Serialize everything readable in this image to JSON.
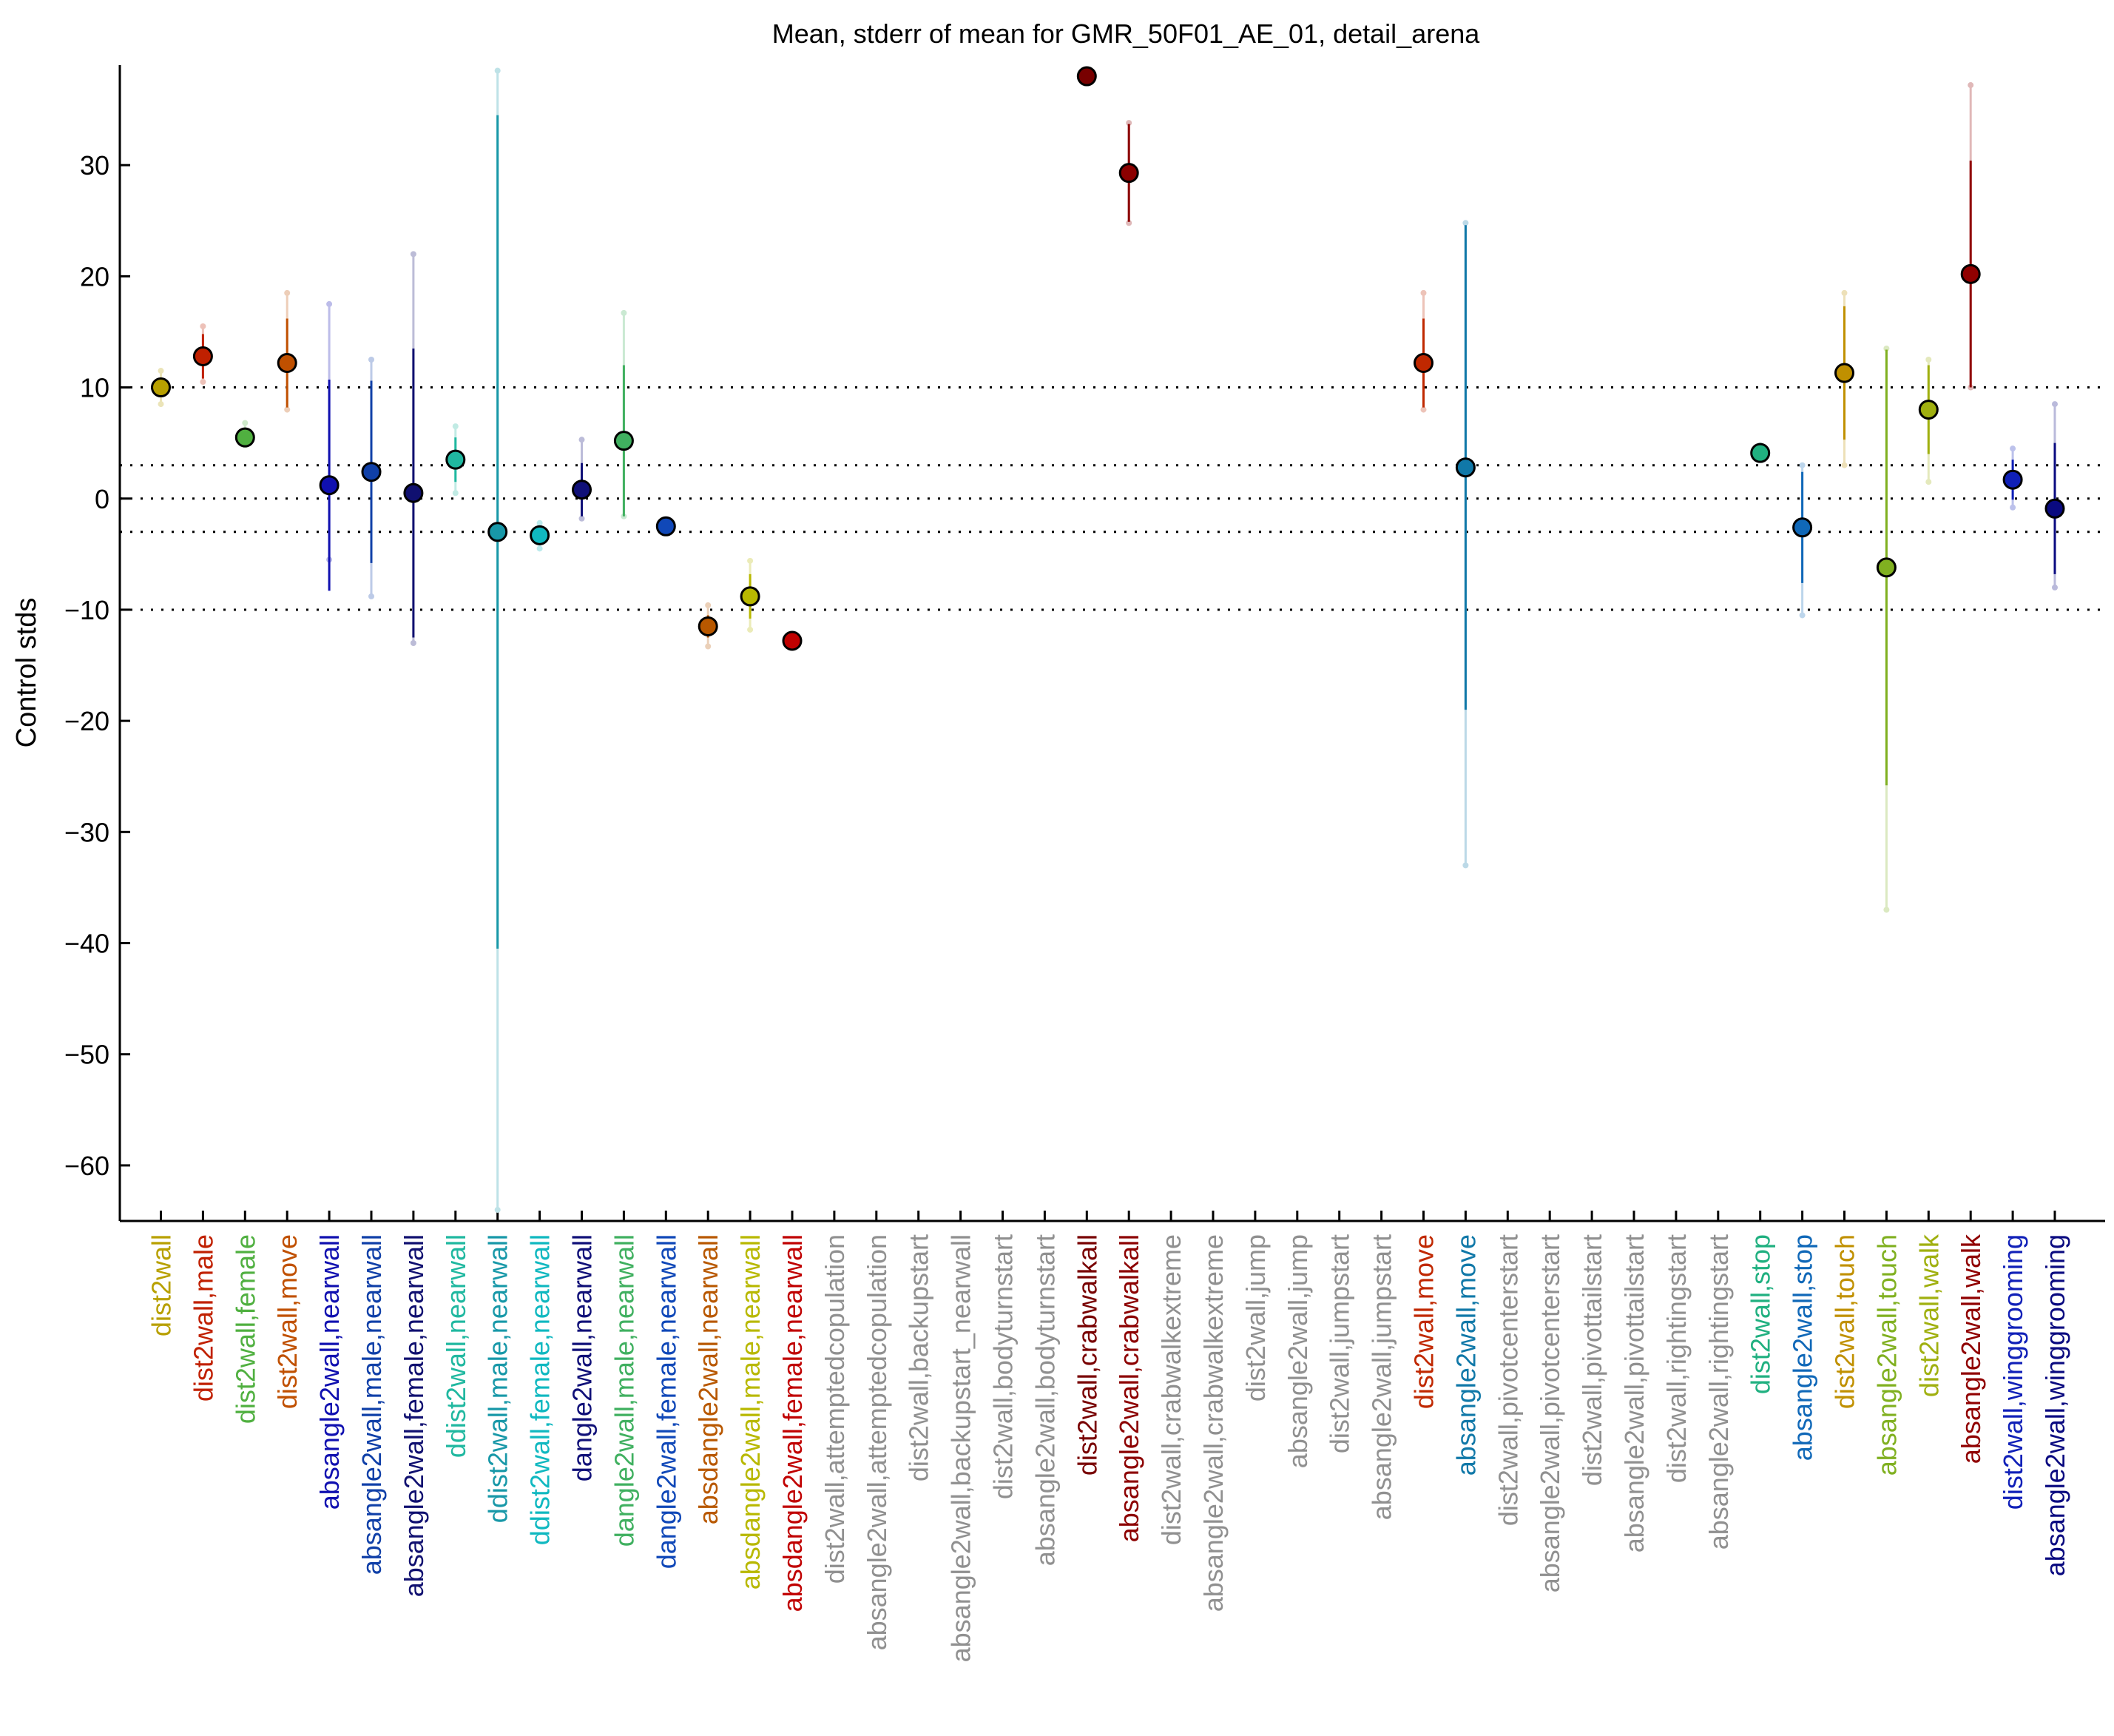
{
  "chart_data": {
    "type": "scatter",
    "title": "Mean, stderr of mean for GMR_50F01_AE_01, detail_arena",
    "xlabel": "",
    "ylabel": "Control stds",
    "ylim": [
      -65,
      39
    ],
    "yticks": [
      30,
      20,
      10,
      0,
      -10,
      -20,
      -30,
      -40,
      -50,
      -60
    ],
    "ytick_labels": [
      "30",
      "20",
      "10",
      "0",
      "−10",
      "−20",
      "−30",
      "−40",
      "−50",
      "−60"
    ],
    "reference_lines": [
      10,
      3,
      0,
      -3,
      -10
    ],
    "grid": false,
    "categories": [
      {
        "label": "dist2wall",
        "color": "#b8a000",
        "mean": 10.0,
        "sem": 0.6,
        "min": 8.5,
        "max": 11.5
      },
      {
        "label": "dist2wall,male",
        "color": "#c02000",
        "mean": 12.8,
        "sem": 2.0,
        "min": 10.5,
        "max": 15.5
      },
      {
        "label": "dist2wall,female",
        "color": "#50b040",
        "mean": 5.5,
        "sem": 0.7,
        "min": 4.8,
        "max": 6.8
      },
      {
        "label": "dist2wall,move",
        "color": "#c05000",
        "mean": 12.2,
        "sem": 4.0,
        "min": 8.0,
        "max": 18.5
      },
      {
        "label": "absangle2wall,nearwall",
        "color": "#1010b0",
        "mean": 1.2,
        "sem": 9.5,
        "min": -5.5,
        "max": 17.5
      },
      {
        "label": "absangle2wall,male,nearwall",
        "color": "#1040a8",
        "mean": 2.4,
        "sem": 8.2,
        "min": -8.8,
        "max": 12.5
      },
      {
        "label": "absangle2wall,female,nearwall",
        "color": "#101070",
        "mean": 0.5,
        "sem": 13.0,
        "min": -13.0,
        "max": 22.0
      },
      {
        "label": "ddist2wall,nearwall",
        "color": "#20b8a0",
        "mean": 3.5,
        "sem": 2.0,
        "min": 0.5,
        "max": 6.5
      },
      {
        "label": "ddist2wall,male,nearwall",
        "color": "#1898a8",
        "mean": -3.0,
        "sem": 37.5,
        "min": -64.0,
        "max": 38.5
      },
      {
        "label": "ddist2wall,female,nearwall",
        "color": "#10b8c0",
        "mean": -3.3,
        "sem": 0.8,
        "min": -4.5,
        "max": -2.2
      },
      {
        "label": "dangle2wall,nearwall",
        "color": "#101078",
        "mean": 0.8,
        "sem": 2.4,
        "min": -1.8,
        "max": 5.3
      },
      {
        "label": "dangle2wall,male,nearwall",
        "color": "#40b060",
        "mean": 5.2,
        "sem": 6.8,
        "min": -1.6,
        "max": 16.7
      },
      {
        "label": "dangle2wall,female,nearwall",
        "color": "#1048b8",
        "mean": -2.5,
        "sem": 0.3,
        "min": -2.8,
        "max": -2.2
      },
      {
        "label": "absdangle2wall,nearwall",
        "color": "#b85800",
        "mean": -11.5,
        "sem": 1.0,
        "min": -13.3,
        "max": -9.6
      },
      {
        "label": "absdangle2wall,male,nearwall",
        "color": "#b8b800",
        "mean": -8.8,
        "sem": 2.0,
        "min": -11.8,
        "max": -5.6
      },
      {
        "label": "absdangle2wall,female,nearwall",
        "color": "#c00000",
        "mean": -12.8,
        "sem": 0.2,
        "min": -13.0,
        "max": -12.6
      },
      {
        "label": "dist2wall,attemptedcopulation",
        "color": "#909090",
        "mean": null,
        "sem": null,
        "min": null,
        "max": null
      },
      {
        "label": "absangle2wall,attemptedcopulation",
        "color": "#909090",
        "mean": null,
        "sem": null,
        "min": null,
        "max": null
      },
      {
        "label": "dist2wall,backupstart",
        "color": "#909090",
        "mean": null,
        "sem": null,
        "min": null,
        "max": null
      },
      {
        "label": "absangle2wall,backupstart_nearwall",
        "color": "#909090",
        "mean": null,
        "sem": null,
        "min": null,
        "max": null
      },
      {
        "label": "dist2wall,bodyturnstart",
        "color": "#909090",
        "mean": null,
        "sem": null,
        "min": null,
        "max": null
      },
      {
        "label": "absangle2wall,bodyturnstart",
        "color": "#909090",
        "mean": null,
        "sem": null,
        "min": null,
        "max": null
      },
      {
        "label": "dist2wall,crabwalkall",
        "color": "#780000",
        "mean": 38.0,
        "sem": 0.0,
        "min": 38.0,
        "max": 38.0
      },
      {
        "label": "absangle2wall,crabwalkall",
        "color": "#8c0000",
        "mean": 29.3,
        "sem": 4.4,
        "min": 24.8,
        "max": 33.8
      },
      {
        "label": "dist2wall,crabwalkextreme",
        "color": "#909090",
        "mean": null,
        "sem": null,
        "min": null,
        "max": null
      },
      {
        "label": "absangle2wall,crabwalkextreme",
        "color": "#909090",
        "mean": null,
        "sem": null,
        "min": null,
        "max": null
      },
      {
        "label": "dist2wall,jump",
        "color": "#909090",
        "mean": null,
        "sem": null,
        "min": null,
        "max": null
      },
      {
        "label": "absangle2wall,jump",
        "color": "#909090",
        "mean": null,
        "sem": null,
        "min": null,
        "max": null
      },
      {
        "label": "dist2wall,jumpstart",
        "color": "#909090",
        "mean": null,
        "sem": null,
        "min": null,
        "max": null
      },
      {
        "label": "absangle2wall,jumpstart",
        "color": "#909090",
        "mean": null,
        "sem": null,
        "min": null,
        "max": null
      },
      {
        "label": "dist2wall,move",
        "color": "#c02800",
        "mean": 12.2,
        "sem": 4.0,
        "min": 8.0,
        "max": 18.5
      },
      {
        "label": "absangle2wall,move",
        "color": "#1078a8",
        "mean": 2.8,
        "sem": 21.8,
        "min": -33.0,
        "max": 24.8
      },
      {
        "label": "dist2wall,pivotcenterstart",
        "color": "#909090",
        "mean": null,
        "sem": null,
        "min": null,
        "max": null
      },
      {
        "label": "absangle2wall,pivotcenterstart",
        "color": "#909090",
        "mean": null,
        "sem": null,
        "min": null,
        "max": null
      },
      {
        "label": "dist2wall,pivottailstart",
        "color": "#909090",
        "mean": null,
        "sem": null,
        "min": null,
        "max": null
      },
      {
        "label": "absangle2wall,pivottailstart",
        "color": "#909090",
        "mean": null,
        "sem": null,
        "min": null,
        "max": null
      },
      {
        "label": "dist2wall,rightingstart",
        "color": "#909090",
        "mean": null,
        "sem": null,
        "min": null,
        "max": null
      },
      {
        "label": "absangle2wall,rightingstart",
        "color": "#909090",
        "mean": null,
        "sem": null,
        "min": null,
        "max": null
      },
      {
        "label": "dist2wall,stop",
        "color": "#20b080",
        "mean": 4.1,
        "sem": 0.5,
        "min": 3.5,
        "max": 4.8
      },
      {
        "label": "absangle2wall,stop",
        "color": "#1068b8",
        "mean": -2.6,
        "sem": 5.0,
        "min": -10.5,
        "max": 3.0
      },
      {
        "label": "dist2wall,touch",
        "color": "#c09000",
        "mean": 11.3,
        "sem": 6.0,
        "min": 3.0,
        "max": 18.5
      },
      {
        "label": "absangle2wall,touch",
        "color": "#80b020",
        "mean": -6.2,
        "sem": 19.6,
        "min": -37.0,
        "max": 13.5
      },
      {
        "label": "dist2wall,walk",
        "color": "#a0b010",
        "mean": 8.0,
        "sem": 4.0,
        "min": 1.5,
        "max": 12.5
      },
      {
        "label": "absangle2wall,walk",
        "color": "#900000",
        "mean": 20.2,
        "sem": 10.2,
        "min": 10.0,
        "max": 37.2
      },
      {
        "label": "dist2wall,winggrooming",
        "color": "#1020b8",
        "mean": 1.7,
        "sem": 1.8,
        "min": -0.8,
        "max": 4.5
      },
      {
        "label": "absangle2wall,winggrooming",
        "color": "#0a0a80",
        "mean": -0.9,
        "sem": 5.9,
        "min": -8.0,
        "max": 8.5
      }
    ]
  }
}
